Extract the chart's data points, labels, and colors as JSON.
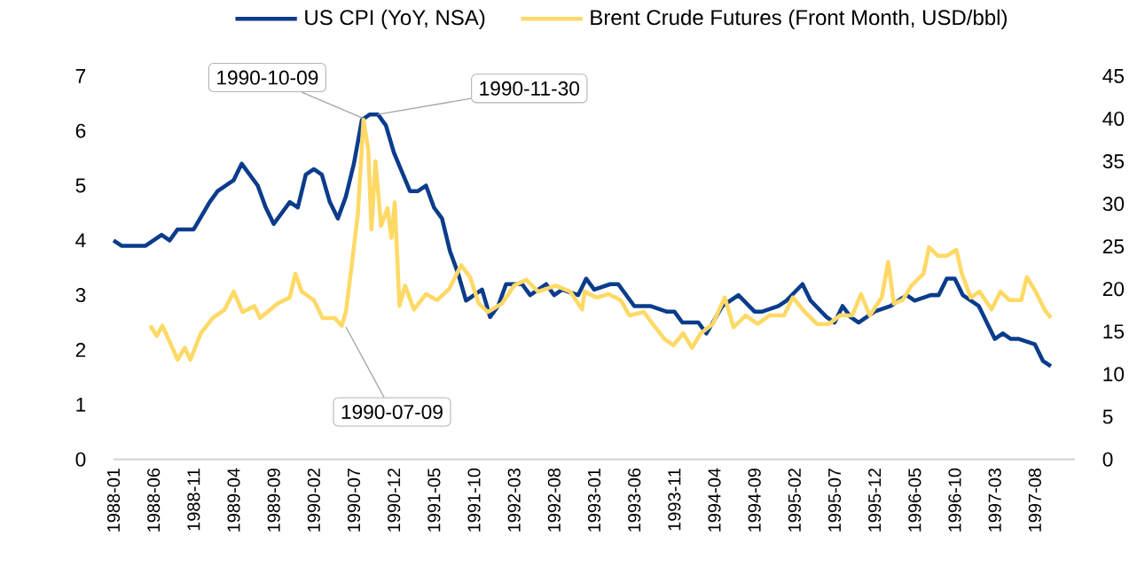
{
  "chart_data": {
    "type": "line",
    "xlim": [
      "1988-01",
      "1998-01"
    ],
    "xticks": [
      "1988-01",
      "1988-06",
      "1988-11",
      "1989-04",
      "1989-09",
      "1990-02",
      "1990-07",
      "1990-12",
      "1991-05",
      "1991-10",
      "1992-03",
      "1992-08",
      "1993-01",
      "1993-06",
      "1993-11",
      "1994-04",
      "1994-09",
      "1995-02",
      "1995-07",
      "1995-12",
      "1996-05",
      "1996-10",
      "1997-03",
      "1997-08"
    ],
    "ylim": [
      0,
      7
    ],
    "yticks": [
      0,
      1,
      2,
      3,
      4,
      5,
      6,
      7
    ],
    "y2lim": [
      0,
      45
    ],
    "y2ticks": [
      0,
      5,
      10,
      15,
      20,
      25,
      30,
      35,
      40,
      45
    ],
    "legend": "top",
    "grid": false,
    "marker": "none",
    "line_style": "solid",
    "series": [
      {
        "name": "US CPI (YoY, NSA)",
        "color": "#0b3c8c",
        "x": [
          "1988-01",
          "1988-02",
          "1988-05",
          "1988-07",
          "1988-08",
          "1988-09",
          "1988-11",
          "1989-01",
          "1989-02",
          "1989-04",
          "1989-05",
          "1989-07",
          "1989-08",
          "1989-09",
          "1989-11",
          "1989-12",
          "1990-01",
          "1990-02",
          "1990-03",
          "1990-04",
          "1990-05",
          "1990-06",
          "1990-07",
          "1990-08",
          "1990-09",
          "1990-10",
          "1990-11",
          "1990-12",
          "1991-02",
          "1991-03",
          "1991-04",
          "1991-05",
          "1991-06",
          "1991-07",
          "1991-08",
          "1991-09",
          "1991-10",
          "1991-11",
          "1991-12",
          "1992-01",
          "1992-02",
          "1992-04",
          "1992-05",
          "1992-07",
          "1992-08",
          "1992-09",
          "1992-11",
          "1992-12",
          "1993-01",
          "1993-03",
          "1993-04",
          "1993-06",
          "1993-07",
          "1993-08",
          "1993-10",
          "1993-11",
          "1993-12",
          "1994-02",
          "1994-03",
          "1994-05",
          "1994-06",
          "1994-07",
          "1994-09",
          "1994-10",
          "1994-12",
          "1995-01",
          "1995-03",
          "1995-04",
          "1995-06",
          "1995-07",
          "1995-08",
          "1995-09",
          "1995-10",
          "1995-12",
          "1996-02",
          "1996-04",
          "1996-05",
          "1996-07",
          "1996-08",
          "1996-09",
          "1996-10",
          "1996-11",
          "1997-01",
          "1997-02",
          "1997-03",
          "1997-04",
          "1997-05",
          "1997-06",
          "1997-08",
          "1997-09",
          "1997-10"
        ],
        "values": [
          4.0,
          3.9,
          3.9,
          4.1,
          4.0,
          4.2,
          4.2,
          4.7,
          4.9,
          5.1,
          5.4,
          5.0,
          4.6,
          4.3,
          4.7,
          4.6,
          5.2,
          5.3,
          5.2,
          4.7,
          4.4,
          4.8,
          5.4,
          6.2,
          6.3,
          6.3,
          6.1,
          5.6,
          4.9,
          4.9,
          5.0,
          4.6,
          4.4,
          3.8,
          3.4,
          2.9,
          3.0,
          3.1,
          2.6,
          2.8,
          3.2,
          3.2,
          3.0,
          3.2,
          3.0,
          3.1,
          3.0,
          3.3,
          3.1,
          3.2,
          3.2,
          2.8,
          2.8,
          2.8,
          2.7,
          2.7,
          2.5,
          2.5,
          2.3,
          2.8,
          2.9,
          3.0,
          2.7,
          2.7,
          2.8,
          2.9,
          3.2,
          2.9,
          2.6,
          2.5,
          2.8,
          2.6,
          2.5,
          2.7,
          2.8,
          3.0,
          2.9,
          3.0,
          3.0,
          3.3,
          3.3,
          3.0,
          2.8,
          2.5,
          2.2,
          2.3,
          2.2,
          2.2,
          2.1,
          1.8,
          1.7
        ]
      },
      {
        "name": "Brent Crude Futures (Front Month, USD/bbl)",
        "color": "#ffd966",
        "axis": "y2",
        "x": [
          "1988-05-19",
          "1988-06-13",
          "1988-07-04",
          "1988-08-07",
          "1988-09-01",
          "1988-09-28",
          "1988-10-19",
          "1988-11-28",
          "1989-01-13",
          "1989-02-28",
          "1989-04-01",
          "1989-05-04",
          "1989-06-19",
          "1989-07-10",
          "1989-09-16",
          "1989-11-01",
          "1989-11-22",
          "1989-12-16",
          "1990-02-01",
          "1990-03-04",
          "1990-04-19",
          "1990-05-16",
          "1990-06-01",
          "1990-06-22",
          "1990-07-16",
          "1990-08-07",
          "1990-08-25",
          "1990-09-07",
          "1990-09-22",
          "1990-10-13",
          "1990-11-07",
          "1990-11-22",
          "1990-12-04",
          "1990-12-22",
          "1991-01-13",
          "1991-02-16",
          "1991-04-01",
          "1991-05-13",
          "1991-06-28",
          "1991-08-13",
          "1991-09-16",
          "1991-10-19",
          "1991-11-22",
          "1992-01-16",
          "1992-03-01",
          "1992-04-16",
          "1992-06-01",
          "1992-08-07",
          "1992-10-01",
          "1992-11-16",
          "1992-11-25",
          "1993-01-10",
          "1993-02-25",
          "1993-04-10",
          "1993-05-13",
          "1993-07-07",
          "1993-08-10",
          "1993-09-25",
          "1993-10-28",
          "1993-12-04",
          "1994-01-07",
          "1994-02-10",
          "1994-03-25",
          "1994-05-10",
          "1994-06-13",
          "1994-07-28",
          "1994-09-13",
          "1994-10-28",
          "1994-12-22",
          "1995-01-25",
          "1995-03-10",
          "1995-04-25",
          "1995-06-10",
          "1995-07-22",
          "1995-09-07",
          "1995-10-10",
          "1995-11-13",
          "1995-12-28",
          "1996-01-22",
          "1996-02-13",
          "1996-03-16",
          "1996-04-19",
          "1996-06-04",
          "1996-06-25",
          "1996-07-28",
          "1996-09-01",
          "1996-10-07",
          "1996-10-28",
          "1996-12-01",
          "1997-01-04",
          "1997-02-19",
          "1997-03-22",
          "1997-04-25",
          "1997-06-10",
          "1997-07-01",
          "1997-08-04",
          "1997-09-07",
          "1997-10-01"
        ],
        "values": [
          15.7,
          14.5,
          15.7,
          13.4,
          11.7,
          13.1,
          11.7,
          14.8,
          16.6,
          17.6,
          19.7,
          17.3,
          18.0,
          16.6,
          18.3,
          19.0,
          21.8,
          19.7,
          18.7,
          16.6,
          16.6,
          15.7,
          17.3,
          22.5,
          28.8,
          39.9,
          36.4,
          27.0,
          35.0,
          27.4,
          29.5,
          26.0,
          30.2,
          18.0,
          20.4,
          17.6,
          19.4,
          18.7,
          20.0,
          22.8,
          21.4,
          18.3,
          17.3,
          18.3,
          20.4,
          21.1,
          19.7,
          20.4,
          19.7,
          17.6,
          19.7,
          19.0,
          19.4,
          18.7,
          16.9,
          17.3,
          15.9,
          14.1,
          13.4,
          14.8,
          13.1,
          14.8,
          15.9,
          19.0,
          15.5,
          16.9,
          15.9,
          16.9,
          16.9,
          19.0,
          17.3,
          15.9,
          15.9,
          16.9,
          16.9,
          19.4,
          16.9,
          19.0,
          23.2,
          18.3,
          18.7,
          20.4,
          21.8,
          24.9,
          23.9,
          23.9,
          24.6,
          21.8,
          19.0,
          19.7,
          17.6,
          19.7,
          18.7,
          18.7,
          21.4,
          19.7,
          17.6,
          16.6
        ]
      }
    ],
    "annotations": [
      {
        "text": "1990-10-09",
        "x": "1990-08-01",
        "y": 6.24
      },
      {
        "text": "1990-11-30",
        "x": "1990-10-01",
        "y": 6.3
      },
      {
        "text": "1990-07-09",
        "x": "1990-06-01",
        "y": 2.42
      }
    ]
  }
}
